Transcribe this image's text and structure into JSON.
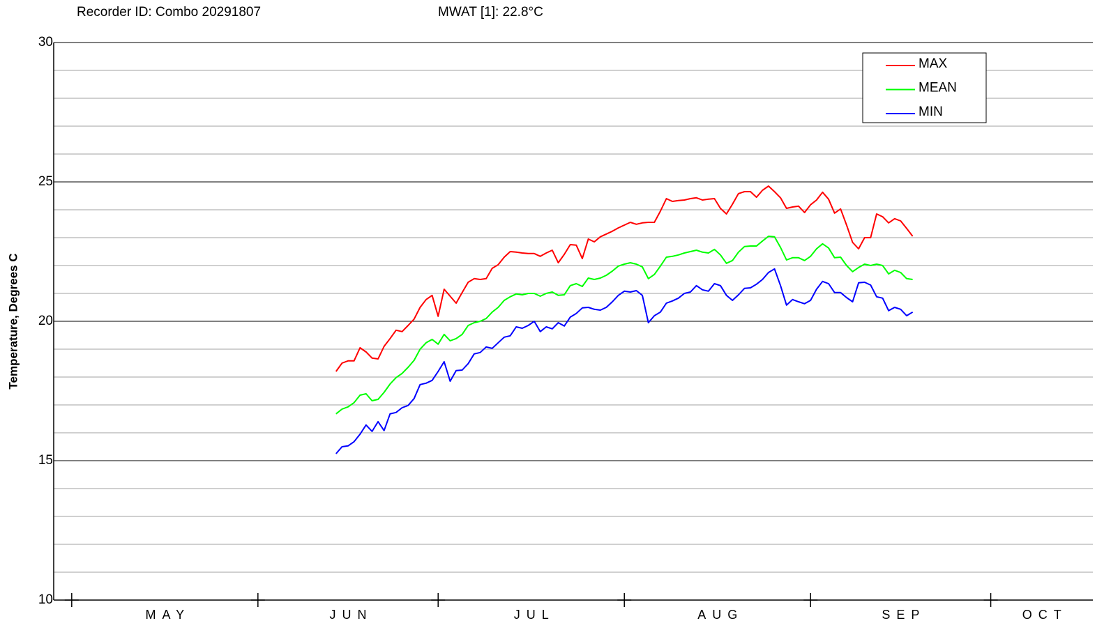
{
  "chart_data": {
    "type": "line",
    "title": "Recorder ID: Combo 20291807",
    "subtitle": "MWAT [1]:  22.8°C",
    "ylabel": "Temperature, Degrees C",
    "ylim": [
      10,
      30
    ],
    "yticks": [
      10,
      15,
      20,
      25,
      30
    ],
    "minor_yticks": [
      11,
      12,
      13,
      14,
      16,
      17,
      18,
      19,
      21,
      22,
      23,
      24,
      26,
      27,
      28,
      29
    ],
    "xlim": [
      -3,
      170
    ],
    "months": [
      {
        "label": "MAY",
        "start": 0,
        "end": 31
      },
      {
        "label": "JUN",
        "start": 31,
        "end": 61
      },
      {
        "label": "JUL",
        "start": 61,
        "end": 92
      },
      {
        "label": "AUG",
        "start": 92,
        "end": 123
      },
      {
        "label": "SEP",
        "start": 123,
        "end": 153
      },
      {
        "label": "OCT",
        "start": 153,
        "end": 184
      }
    ],
    "grid": true,
    "legend": "upper right",
    "x": [
      44,
      45,
      46,
      47,
      48,
      49,
      50,
      51,
      52,
      53,
      54,
      55,
      56,
      57,
      58,
      59,
      60,
      61,
      62,
      63,
      64,
      65,
      66,
      67,
      68,
      69,
      70,
      71,
      72,
      73,
      74,
      75,
      76,
      77,
      78,
      79,
      80,
      81,
      82,
      83,
      84,
      85,
      86,
      87,
      88,
      89,
      90,
      91,
      92,
      93,
      94,
      95,
      96,
      97,
      98,
      99,
      100,
      101,
      102,
      103,
      104,
      105,
      106,
      107,
      108,
      109,
      110,
      111,
      112,
      113,
      114,
      115,
      116,
      117,
      118,
      119,
      120,
      121,
      122,
      123,
      124,
      125,
      126,
      127,
      128,
      129,
      130,
      131,
      132,
      133,
      134,
      135,
      136,
      137,
      138,
      139,
      140
    ],
    "series": [
      {
        "name": "MAX",
        "color": "#ff0000",
        "values": [
          18.2,
          18.5,
          18.58,
          18.58,
          19.05,
          18.9,
          18.68,
          18.65,
          19.1,
          19.38,
          19.68,
          19.63,
          19.85,
          20.08,
          20.5,
          20.78,
          20.93,
          20.18,
          21.15,
          20.9,
          20.65,
          21.03,
          21.4,
          21.53,
          21.5,
          21.53,
          21.9,
          22.03,
          22.3,
          22.5,
          22.48,
          22.45,
          22.43,
          22.43,
          22.33,
          22.45,
          22.55,
          22.1,
          22.4,
          22.75,
          22.73,
          22.25,
          22.95,
          22.85,
          23.03,
          23.13,
          23.23,
          23.35,
          23.45,
          23.55,
          23.48,
          23.53,
          23.55,
          23.55,
          23.95,
          24.4,
          24.3,
          24.33,
          24.35,
          24.4,
          24.43,
          24.35,
          24.38,
          24.4,
          24.05,
          23.85,
          24.2,
          24.58,
          24.65,
          24.65,
          24.45,
          24.7,
          24.85,
          24.65,
          24.43,
          24.05,
          24.1,
          24.13,
          23.9,
          24.18,
          24.35,
          24.63,
          24.38,
          23.88,
          24.03,
          23.45,
          22.83,
          22.6,
          23.0,
          23.0,
          23.85,
          23.75,
          23.53,
          23.68,
          23.6,
          23.33,
          23.05
        ]
      },
      {
        "name": "MEAN",
        "color": "#00ff00",
        "values": [
          16.68,
          16.85,
          16.93,
          17.08,
          17.35,
          17.4,
          17.15,
          17.2,
          17.45,
          17.75,
          17.98,
          18.13,
          18.35,
          18.6,
          19.0,
          19.23,
          19.35,
          19.18,
          19.53,
          19.3,
          19.38,
          19.53,
          19.85,
          19.95,
          20.0,
          20.1,
          20.33,
          20.5,
          20.75,
          20.88,
          20.98,
          20.95,
          21.0,
          21.0,
          20.9,
          21.0,
          21.05,
          20.93,
          20.95,
          21.28,
          21.35,
          21.25,
          21.55,
          21.5,
          21.55,
          21.65,
          21.8,
          21.98,
          22.05,
          22.1,
          22.05,
          21.95,
          21.53,
          21.68,
          21.98,
          22.3,
          22.33,
          22.38,
          22.45,
          22.5,
          22.55,
          22.48,
          22.45,
          22.58,
          22.38,
          22.08,
          22.18,
          22.48,
          22.68,
          22.7,
          22.7,
          22.88,
          23.05,
          23.03,
          22.65,
          22.2,
          22.28,
          22.28,
          22.18,
          22.33,
          22.6,
          22.78,
          22.63,
          22.28,
          22.3,
          22.0,
          21.78,
          21.93,
          22.05,
          22.0,
          22.05,
          22.0,
          21.7,
          21.83,
          21.75,
          21.53,
          21.5
        ]
      },
      {
        "name": "MIN",
        "color": "#0000ff",
        "values": [
          15.25,
          15.5,
          15.53,
          15.68,
          15.95,
          16.28,
          16.05,
          16.4,
          16.08,
          16.68,
          16.73,
          16.9,
          16.98,
          17.23,
          17.73,
          17.78,
          17.88,
          18.2,
          18.55,
          17.85,
          18.23,
          18.25,
          18.48,
          18.83,
          18.88,
          19.08,
          19.03,
          19.23,
          19.43,
          19.48,
          19.8,
          19.75,
          19.85,
          20.0,
          19.63,
          19.8,
          19.73,
          19.95,
          19.83,
          20.15,
          20.28,
          20.48,
          20.5,
          20.43,
          20.4,
          20.5,
          20.7,
          20.93,
          21.08,
          21.05,
          21.1,
          20.93,
          19.95,
          20.2,
          20.33,
          20.65,
          20.73,
          20.83,
          21.0,
          21.05,
          21.28,
          21.13,
          21.08,
          21.35,
          21.28,
          20.93,
          20.75,
          20.95,
          21.18,
          21.2,
          21.33,
          21.5,
          21.75,
          21.88,
          21.28,
          20.58,
          20.78,
          20.7,
          20.63,
          20.75,
          21.15,
          21.43,
          21.35,
          21.03,
          21.03,
          20.85,
          20.7,
          21.38,
          21.4,
          21.3,
          20.88,
          20.83,
          20.38,
          20.5,
          20.43,
          20.2,
          20.33
        ]
      }
    ]
  }
}
